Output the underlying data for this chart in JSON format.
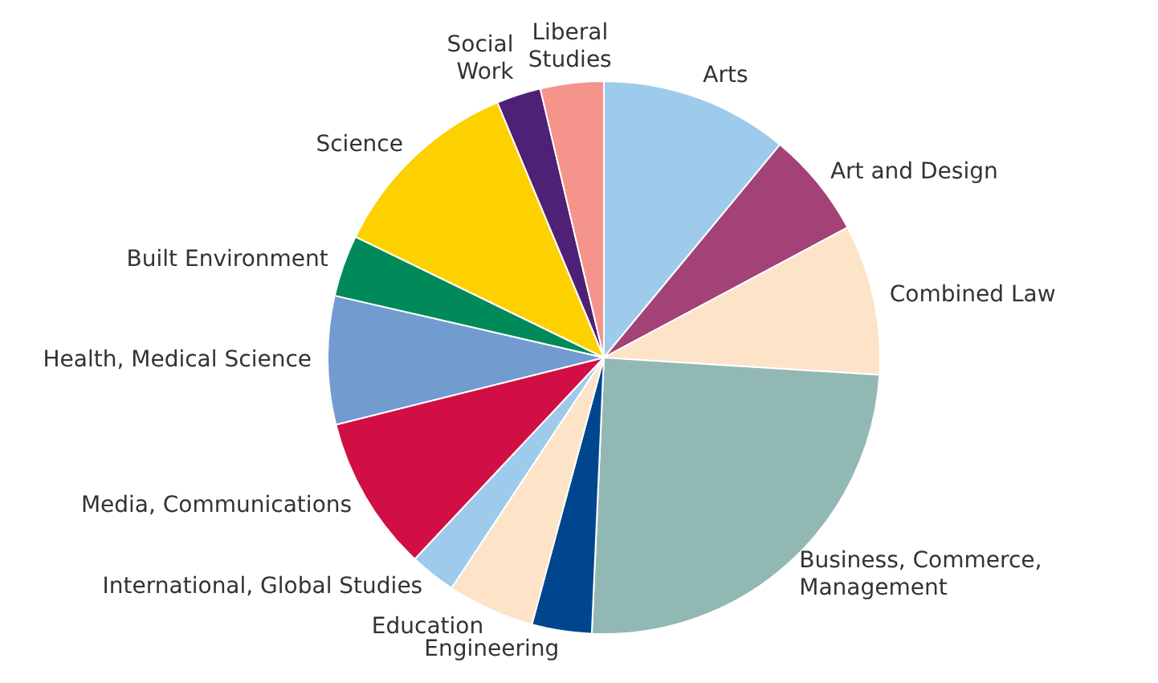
{
  "chart_data": {
    "type": "pie",
    "categories": [
      "Arts",
      "Art and Design",
      "Combined Law",
      "Business, Commerce, Management",
      "Engineering",
      "Education",
      "International, Global Studies",
      "Media, Communications",
      "Health, Medical Science",
      "Built Environment",
      "Science",
      "Social Work",
      "Liberal Studies"
    ],
    "values": [
      11,
      6.2,
      8.8,
      24.7,
      3.5,
      5.1,
      2.7,
      9.1,
      7.5,
      3.6,
      11.5,
      2.6,
      3.7
    ],
    "colors": [
      "#9ecbec",
      "#a34276",
      "#fde3c8",
      "#92b8b4",
      "#00468f",
      "#fde3c8",
      "#9ecbec",
      "#d20f45",
      "#729cd0",
      "#008a5a",
      "#fdd000",
      "#4e2177",
      "#f4948a"
    ],
    "legend": false
  }
}
